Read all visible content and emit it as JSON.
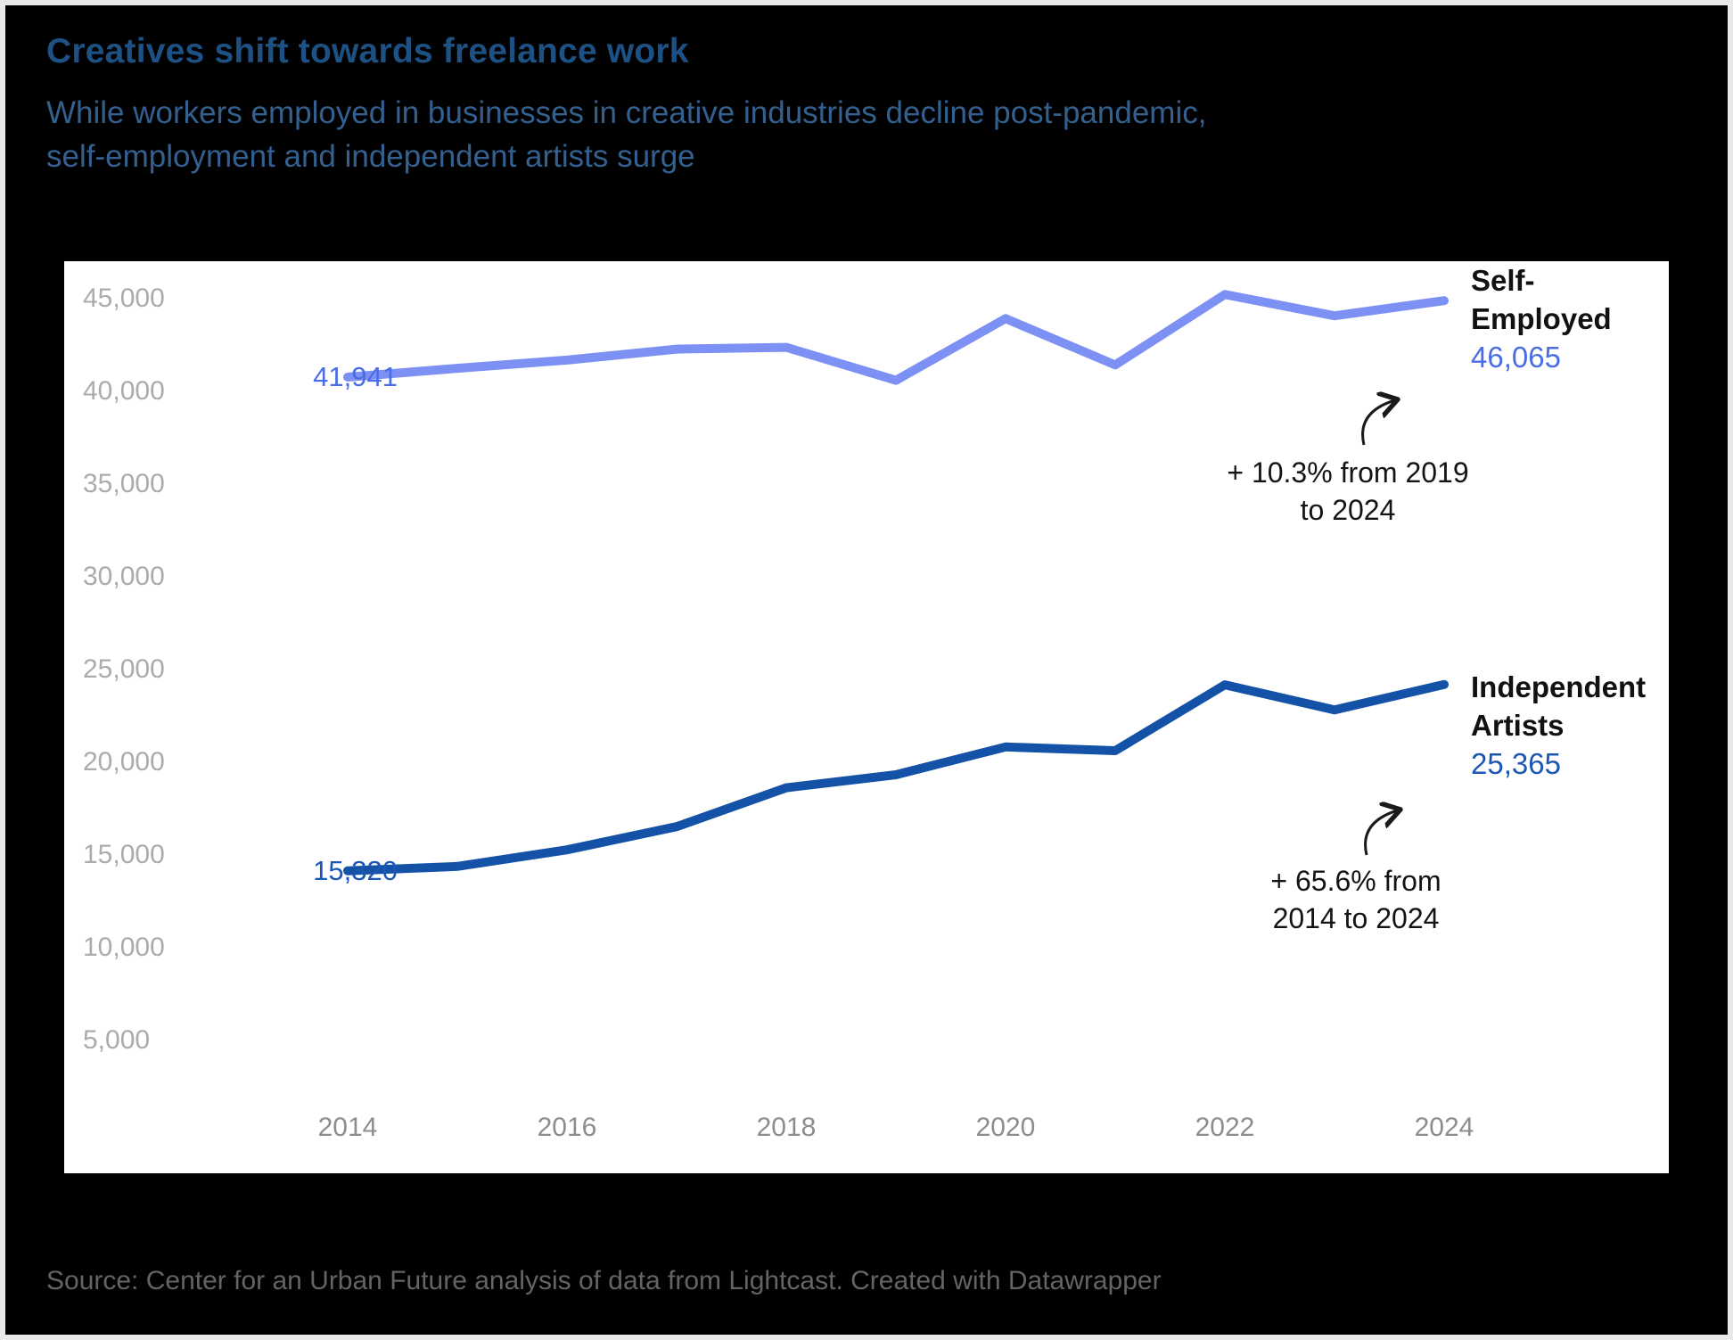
{
  "header": {
    "title_color": "#1d5184",
    "subtitle_color": "#33608f"
  },
  "footer": {
    "source": "Source: Center for an Urban Future analysis of data from Lightcast. Created with Datawrapper",
    "source_color": "#646464"
  },
  "chart_data": {
    "type": "line",
    "title": "Creatives shift towards freelance work",
    "subtitle_lines": [
      "While workers employed in businesses in creative industries decline post-pandemic,",
      "self-employment and independent artists surge"
    ],
    "x": [
      2014,
      2015,
      2016,
      2017,
      2018,
      2019,
      2020,
      2021,
      2022,
      2023,
      2024
    ],
    "series": [
      {
        "name": "Self-Employed",
        "name_lines": [
          "Self-",
          "Employed"
        ],
        "color": "#7d90f4",
        "value_color": "#4a6de3",
        "values": [
          41941,
          42420,
          42860,
          43450,
          43550,
          41770,
          45100,
          42600,
          46400,
          45250,
          46065
        ],
        "start_label": "41,941",
        "end_label": "46,065",
        "annotation_lines": [
          "+ 10.3% from 2019",
          "to 2024"
        ]
      },
      {
        "name": "Independent Artists",
        "name_lines": [
          "Independent",
          "Artists"
        ],
        "color": "#1452a8",
        "value_color": "#1b57b5",
        "values": [
          15320,
          15560,
          16450,
          17700,
          19800,
          20500,
          22000,
          21800,
          25350,
          24000,
          25365
        ],
        "start_label": "15,320",
        "end_label": "25,365",
        "annotation_lines": [
          "+ 65.6% from",
          "2014 to 2024"
        ]
      }
    ],
    "y_axis": {
      "tick_values": [
        45000,
        40000,
        35000,
        30000,
        25000,
        20000,
        15000,
        10000,
        5000
      ],
      "tick_labels": [
        "45,000",
        "40,000",
        "35,000",
        "30,000",
        "25,000",
        "20,000",
        "15,000",
        "10,000",
        "5,000"
      ],
      "label_color": "#ababab"
    },
    "x_axis": {
      "tick_values": [
        2014,
        2016,
        2018,
        2020,
        2022,
        2024
      ],
      "tick_labels": [
        "2014",
        "2016",
        "2018",
        "2020",
        "2022",
        "2024"
      ],
      "label_color": "#8d8d8d"
    },
    "ylim": [
      0,
      48000
    ],
    "grid": false,
    "legend_position": "end-of-line labels",
    "annotation_arrow_color": "#1a1a1a"
  }
}
